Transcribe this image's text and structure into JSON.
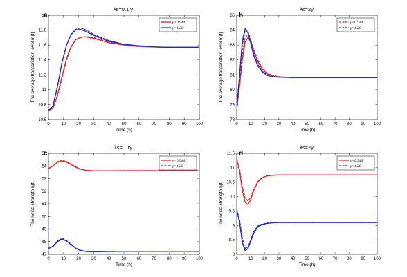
{
  "colors": {
    "red": "#e8231e",
    "blue": "#1f2ac8"
  },
  "chart_data": [
    {
      "type": "line",
      "panel": "a",
      "title": "λs=0.1 γ",
      "xlabel": "Time (h)",
      "ylabel": "The average transcription level m(t)",
      "xlim": [
        0,
        100
      ],
      "ylim": [
        10.6,
        12
      ],
      "xticks": [
        0,
        10,
        20,
        30,
        40,
        50,
        60,
        70,
        80,
        90,
        100
      ],
      "yticks": [
        10.6,
        10.8,
        11,
        11.2,
        11.4,
        11.6,
        11.8,
        12
      ],
      "legend_position": "top-right",
      "series": [
        {
          "name": "γ=0.944",
          "style": "solid",
          "color": "red",
          "x": [
            0,
            3,
            6,
            9,
            12,
            15,
            18,
            21,
            24,
            27,
            30,
            35,
            40,
            50,
            60,
            70,
            80,
            90,
            100
          ],
          "y": [
            10.72,
            10.75,
            10.93,
            11.18,
            11.42,
            11.58,
            11.67,
            11.7,
            11.71,
            11.7,
            11.69,
            11.66,
            11.63,
            11.6,
            11.58,
            11.575,
            11.57,
            11.57,
            11.57
          ]
        },
        {
          "name": "",
          "style": "dashed",
          "color": "red",
          "x": [
            0,
            3,
            6,
            9,
            12,
            15,
            18,
            21,
            24,
            27,
            30,
            35,
            40,
            50,
            60,
            70,
            80,
            90,
            100
          ],
          "y": [
            10.72,
            10.75,
            10.92,
            11.16,
            11.4,
            11.57,
            11.67,
            11.7,
            11.71,
            11.71,
            11.7,
            11.67,
            11.64,
            11.6,
            11.58,
            11.575,
            11.57,
            11.57,
            11.57
          ]
        },
        {
          "name": "γ=1.28",
          "style": "solid",
          "color": "blue",
          "x": [
            0,
            3,
            6,
            9,
            12,
            15,
            18,
            21,
            24,
            27,
            30,
            35,
            40,
            50,
            60,
            70,
            80,
            90,
            100
          ],
          "y": [
            10.72,
            10.78,
            11.05,
            11.37,
            11.6,
            11.74,
            11.8,
            11.81,
            11.79,
            11.76,
            11.73,
            11.69,
            11.65,
            11.61,
            11.59,
            11.575,
            11.57,
            11.57,
            11.57
          ]
        },
        {
          "name": "",
          "style": "dashed",
          "color": "blue",
          "x": [
            0,
            3,
            6,
            9,
            12,
            15,
            18,
            21,
            24,
            27,
            30,
            35,
            40,
            50,
            60,
            70,
            80,
            90,
            100
          ],
          "y": [
            10.72,
            10.78,
            11.04,
            11.36,
            11.6,
            11.75,
            11.81,
            11.83,
            11.81,
            11.78,
            11.74,
            11.7,
            11.66,
            11.61,
            11.59,
            11.575,
            11.57,
            11.57,
            11.57
          ]
        }
      ]
    },
    {
      "type": "line",
      "panel": "b",
      "title": "λs=2γ",
      "xlabel": "Time (h)",
      "ylabel": "The average transcription level m(t)",
      "xlim": [
        0,
        100
      ],
      "ylim": [
        78,
        85
      ],
      "xticks": [
        0,
        10,
        20,
        30,
        40,
        50,
        60,
        70,
        80,
        90,
        100
      ],
      "yticks": [
        78,
        79,
        80,
        81,
        82,
        83,
        84,
        85
      ],
      "legend_position": "top-right",
      "series": [
        {
          "name": "γ=0.944",
          "style": "dashed",
          "color": "red",
          "x": [
            0,
            2,
            4,
            6,
            8,
            10,
            12,
            15,
            18,
            22,
            26,
            30,
            35,
            40,
            50,
            60,
            70,
            80,
            90,
            100
          ],
          "y": [
            78.7,
            80.4,
            82.4,
            83.5,
            83.7,
            83.3,
            82.7,
            82.0,
            81.5,
            81.1,
            80.95,
            80.88,
            80.85,
            80.83,
            80.82,
            80.82,
            80.82,
            80.82,
            80.82,
            80.82
          ]
        },
        {
          "name": "",
          "style": "solid",
          "color": "red",
          "x": [
            0,
            2,
            4,
            6,
            8,
            10,
            12,
            15,
            18,
            22,
            26,
            30,
            35,
            40,
            50,
            60,
            70,
            80,
            90,
            100
          ],
          "y": [
            78.7,
            80.2,
            82.0,
            83.2,
            83.5,
            83.2,
            82.6,
            81.9,
            81.4,
            81.05,
            80.92,
            80.86,
            80.84,
            80.83,
            80.82,
            80.82,
            80.82,
            80.82,
            80.82,
            80.82
          ]
        },
        {
          "name": "γ=1.28",
          "style": "dashed",
          "color": "blue",
          "x": [
            0,
            2,
            4,
            6,
            8,
            10,
            12,
            15,
            18,
            22,
            26,
            30,
            35,
            40,
            50,
            60,
            70,
            80,
            90,
            100
          ],
          "y": [
            78.7,
            80.8,
            83.0,
            84.0,
            83.9,
            83.3,
            82.5,
            81.7,
            81.25,
            80.98,
            80.88,
            80.85,
            80.83,
            80.82,
            80.82,
            80.82,
            80.82,
            80.82,
            80.82,
            80.82
          ]
        },
        {
          "name": "",
          "style": "solid",
          "color": "blue",
          "x": [
            0,
            2,
            4,
            6,
            8,
            10,
            12,
            15,
            18,
            22,
            26,
            30,
            35,
            40,
            50,
            60,
            70,
            80,
            90,
            100
          ],
          "y": [
            78.7,
            81.0,
            83.3,
            84.1,
            83.8,
            83.1,
            82.3,
            81.6,
            81.2,
            80.95,
            80.87,
            80.84,
            80.83,
            80.82,
            80.82,
            80.82,
            80.82,
            80.82,
            80.82,
            80.82
          ]
        }
      ]
    },
    {
      "type": "line",
      "panel": "c",
      "title": "λs=0.1γ",
      "xlabel": "Time (h)",
      "ylabel": "The noise strength η(t)",
      "xlim": [
        0,
        100
      ],
      "ylim": [
        47,
        55
      ],
      "xticks": [
        0,
        10,
        20,
        30,
        40,
        50,
        60,
        70,
        80,
        90,
        100
      ],
      "yticks": [
        47,
        48,
        49,
        50,
        51,
        52,
        53,
        54,
        55
      ],
      "legend_position": "top-right",
      "series": [
        {
          "name": "γ=0.944",
          "style": "solid",
          "color": "red",
          "x": [
            0,
            3,
            6,
            9,
            12,
            15,
            18,
            21,
            25,
            30,
            35,
            40,
            50,
            60,
            70,
            80,
            90,
            100
          ],
          "y": [
            53.8,
            54.0,
            54.3,
            54.4,
            54.3,
            54.1,
            53.9,
            53.75,
            53.65,
            53.62,
            53.62,
            53.62,
            53.63,
            53.63,
            53.63,
            53.63,
            53.63,
            53.63
          ]
        },
        {
          "name": "",
          "style": "dashed",
          "color": "red",
          "x": [
            0,
            3,
            6,
            9,
            12,
            15,
            18,
            21,
            25,
            30,
            35,
            40,
            50,
            60,
            70,
            80,
            90,
            100
          ],
          "y": [
            53.8,
            54.0,
            54.35,
            54.45,
            54.35,
            54.15,
            53.93,
            53.77,
            53.66,
            53.62,
            53.62,
            53.62,
            53.63,
            53.63,
            53.63,
            53.63,
            53.63,
            53.63
          ]
        },
        {
          "name": "γ=1.28",
          "style": "dashed",
          "color": "blue",
          "x": [
            0,
            3,
            6,
            9,
            12,
            15,
            18,
            21,
            25,
            30,
            35,
            40,
            50,
            60,
            70,
            80,
            90,
            100
          ],
          "y": [
            47.45,
            47.65,
            48.05,
            48.25,
            48.1,
            47.8,
            47.5,
            47.32,
            47.22,
            47.2,
            47.21,
            47.22,
            47.23,
            47.23,
            47.23,
            47.23,
            47.23,
            47.23
          ]
        },
        {
          "name": "",
          "style": "solid",
          "color": "blue",
          "x": [
            0,
            3,
            6,
            9,
            12,
            15,
            18,
            21,
            25,
            30,
            35,
            40,
            50,
            60,
            70,
            80,
            90,
            100
          ],
          "y": [
            47.45,
            47.62,
            48.0,
            48.2,
            48.05,
            47.75,
            47.48,
            47.3,
            47.21,
            47.2,
            47.21,
            47.22,
            47.23,
            47.23,
            47.23,
            47.23,
            47.23,
            47.23
          ]
        }
      ]
    },
    {
      "type": "line",
      "panel": "d",
      "title": "λs=2γ",
      "xlabel": "Time (h)",
      "ylabel": "The noise strength η(t)",
      "xlim": [
        0,
        100
      ],
      "ylim": [
        8,
        11.5
      ],
      "xticks": [
        0,
        10,
        20,
        30,
        40,
        50,
        60,
        70,
        80,
        90,
        100
      ],
      "yticks": [
        8,
        8.5,
        9,
        9.5,
        10,
        10.5,
        11,
        11.5
      ],
      "legend_position": "top-right",
      "series": [
        {
          "name": "γ=0.944",
          "style": "solid",
          "color": "red",
          "x": [
            0,
            2,
            4,
            6,
            8,
            10,
            12,
            15,
            18,
            22,
            26,
            30,
            40,
            50,
            60,
            70,
            80,
            90,
            100
          ],
          "y": [
            11.3,
            10.9,
            10.2,
            9.8,
            9.72,
            9.9,
            10.2,
            10.5,
            10.65,
            10.72,
            10.74,
            10.75,
            10.75,
            10.75,
            10.75,
            10.75,
            10.75,
            10.75,
            10.75
          ]
        },
        {
          "name": "",
          "style": "dashed",
          "color": "red",
          "x": [
            0,
            2,
            4,
            6,
            8,
            10,
            12,
            15,
            18,
            22,
            26,
            30,
            40,
            50,
            60,
            70,
            80,
            90,
            100
          ],
          "y": [
            11.3,
            10.95,
            10.35,
            9.95,
            9.85,
            9.98,
            10.25,
            10.52,
            10.66,
            10.73,
            10.74,
            10.75,
            10.75,
            10.75,
            10.75,
            10.75,
            10.75,
            10.75,
            10.75
          ]
        },
        {
          "name": "γ=1.28",
          "style": "dashed",
          "color": "blue",
          "x": [
            0,
            2,
            4,
            6,
            8,
            10,
            12,
            15,
            18,
            22,
            26,
            30,
            40,
            50,
            60,
            70,
            80,
            90,
            100
          ],
          "y": [
            9.55,
            9.2,
            8.55,
            8.2,
            8.25,
            8.5,
            8.78,
            8.98,
            9.05,
            9.08,
            9.1,
            9.1,
            9.1,
            9.1,
            9.1,
            9.1,
            9.1,
            9.1,
            9.1
          ]
        },
        {
          "name": "",
          "style": "solid",
          "color": "blue",
          "x": [
            0,
            2,
            4,
            6,
            8,
            10,
            12,
            15,
            18,
            22,
            26,
            30,
            40,
            50,
            60,
            70,
            80,
            90,
            100
          ],
          "y": [
            9.55,
            9.1,
            8.4,
            8.12,
            8.2,
            8.45,
            8.72,
            8.95,
            9.03,
            9.07,
            9.09,
            9.1,
            9.1,
            9.1,
            9.1,
            9.1,
            9.1,
            9.1,
            9.1
          ]
        }
      ]
    }
  ]
}
